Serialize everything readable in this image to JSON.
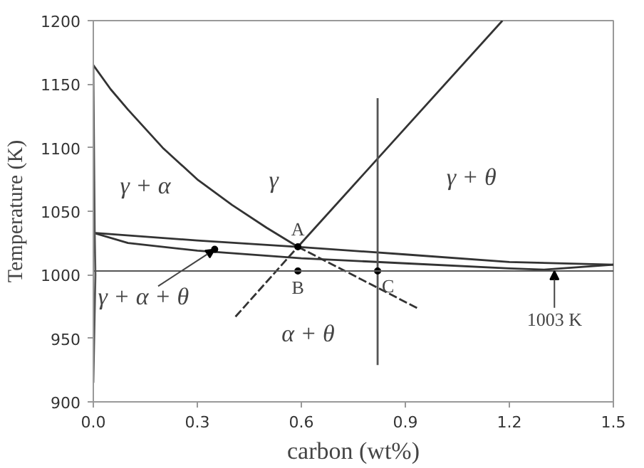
{
  "chart_data": {
    "type": "line",
    "xlabel": "carbon (wt%)",
    "ylabel": "Temperature (K)",
    "xlim": [
      0,
      1.5
    ],
    "xticks": [
      {
        "value": 0,
        "label": "0.0"
      },
      0.3,
      0.6,
      0.9,
      1.2,
      1.5
    ],
    "ylim": [
      900,
      1200
    ],
    "yticks": [
      900,
      950,
      1000,
      1050,
      1100,
      1150,
      1200
    ],
    "grid": false,
    "series": [
      {
        "color": "#333333",
        "x": [
          0,
          0.05,
          0.1,
          0.2,
          0.3,
          0.4,
          0.5,
          0.59
        ],
        "values": [
          1165,
          1146,
          1130,
          1100,
          1075,
          1055,
          1037,
          1022
        ]
      },
      {
        "color": "#333333",
        "line_style": "dashed",
        "x": [
          0.59,
          0.94
        ],
        "values": [
          1022,
          973
        ]
      },
      {
        "color": "#333333",
        "x": [
          0.59,
          1.18
        ],
        "values": [
          1022,
          1200
        ]
      },
      {
        "color": "#333333",
        "line_style": "dashed",
        "x": [
          0.41,
          0.59
        ],
        "values": [
          967,
          1022
        ]
      },
      {
        "color": "#333333",
        "x": [
          0,
          0.3,
          0.59,
          0.9,
          1.2,
          1.5
        ],
        "values": [
          1033,
          1027,
          1022,
          1016,
          1010,
          1008
        ]
      },
      {
        "color": "#333333",
        "x": [
          0,
          0.1,
          0.3,
          0.6,
          0.9,
          1.2,
          1.3,
          1.5
        ],
        "values": [
          1033,
          1025,
          1019,
          1013,
          1009,
          1005,
          1004,
          1008
        ]
      },
      {
        "color": "#555555",
        "x": [
          0,
          0.006,
          0.004,
          0
        ],
        "values": [
          915,
          1000,
          1033,
          1165
        ]
      },
      {
        "color": "#555555",
        "x": [
          0.82,
          0.82
        ],
        "values": [
          929,
          1139
        ]
      },
      {
        "type": "scatter",
        "marker": "circle",
        "color": "#000000",
        "x": [
          0.59,
          0.59,
          0.82,
          0.35
        ],
        "values": [
          1022,
          1003,
          1003,
          1020
        ]
      }
    ],
    "ref_lines": [
      {
        "axis": "y",
        "value": 1003,
        "color": "#555555"
      }
    ],
    "annotations": [
      "γ + α",
      "γ",
      "γ + θ",
      {
        "text": "A",
        "x": 0.59,
        "y": 1022
      },
      {
        "text": "B",
        "x": 0.59,
        "y": 1003
      },
      {
        "text": "C",
        "x": 0.82,
        "y": 1003
      },
      {
        "text": "γ + α + θ",
        "x": 0.35,
        "y": 1020
      },
      "α + θ",
      {
        "text": "1003 K",
        "x": 1.33,
        "y": 1003
      }
    ]
  }
}
